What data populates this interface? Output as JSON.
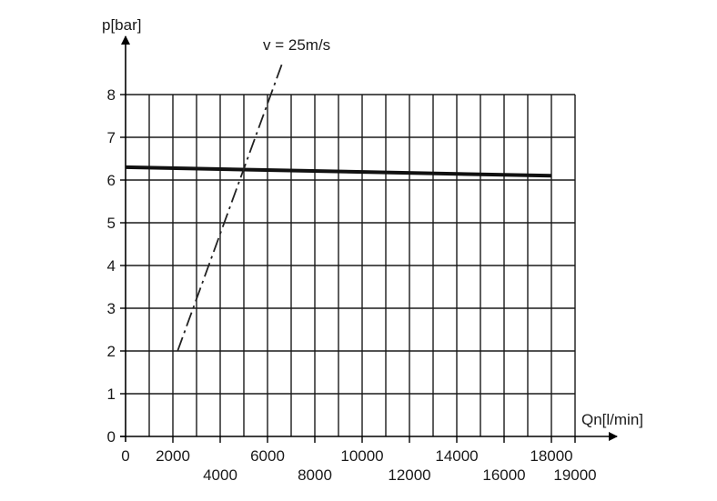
{
  "chart_data": {
    "type": "line",
    "title": "",
    "xlabel": "Qn[l/min]",
    "ylabel": "p[bar]",
    "xlim": [
      0,
      19000
    ],
    "ylim": [
      0,
      8
    ],
    "grid": true,
    "x_ticks": [
      {
        "value": 0,
        "label": "0",
        "row": 0
      },
      {
        "value": 2000,
        "label": "2000",
        "row": 0
      },
      {
        "value": 4000,
        "label": "4000",
        "row": 1
      },
      {
        "value": 6000,
        "label": "6000",
        "row": 0
      },
      {
        "value": 8000,
        "label": "8000",
        "row": 1
      },
      {
        "value": 10000,
        "label": "10000",
        "row": 0
      },
      {
        "value": 12000,
        "label": "12000",
        "row": 1
      },
      {
        "value": 14000,
        "label": "14000",
        "row": 0
      },
      {
        "value": 16000,
        "label": "16000",
        "row": 1
      },
      {
        "value": 18000,
        "label": "18000",
        "row": 0
      },
      {
        "value": 19000,
        "label": "19000",
        "row": 1
      }
    ],
    "y_ticks": [
      0,
      1,
      2,
      3,
      4,
      5,
      6,
      7,
      8
    ],
    "series": [
      {
        "style": "solid-thick",
        "color": "#111111",
        "points": [
          [
            0,
            6.3
          ],
          [
            18000,
            6.1
          ]
        ]
      },
      {
        "name": "v = 25m/s",
        "style": "dash-dot",
        "color": "#222222",
        "points": [
          [
            2200,
            2.0
          ],
          [
            6600,
            8.7
          ]
        ]
      }
    ],
    "annotations": [
      {
        "text": "v = 25m/s",
        "x": 5500,
        "y": 9.2
      }
    ]
  }
}
